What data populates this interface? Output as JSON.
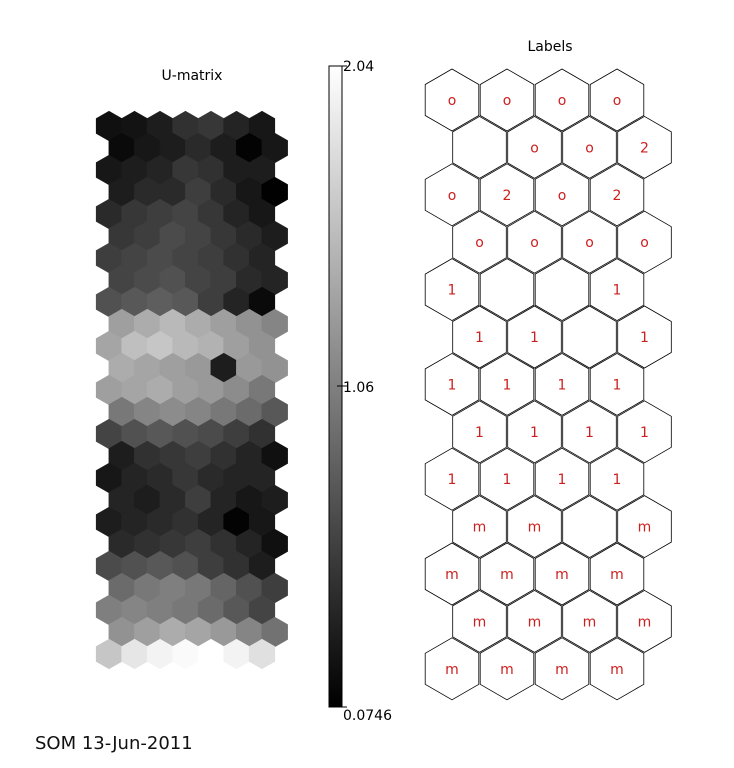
{
  "footer": "SOM 13-Jun-2011",
  "chart_data": [
    {
      "type": "heatmap",
      "title": "U-matrix",
      "grid": "hexagonal",
      "rows": 25,
      "cols": 7,
      "colormap": "gray",
      "colorbar": {
        "min": 0.0746,
        "max": 2.04,
        "ticks": [
          "2.04",
          "1.06",
          "0.0746"
        ]
      },
      "values": [
        [
          0.2,
          0.22,
          0.3,
          0.45,
          0.5,
          0.35,
          0.25
        ],
        [
          0.15,
          0.25,
          0.3,
          0.4,
          0.3,
          0.1,
          0.25
        ],
        [
          0.25,
          0.3,
          0.35,
          0.5,
          0.45,
          0.3,
          0.3
        ],
        [
          0.3,
          0.4,
          0.4,
          0.55,
          0.4,
          0.25,
          0.08
        ],
        [
          0.4,
          0.5,
          0.55,
          0.6,
          0.5,
          0.35,
          0.25
        ],
        [
          0.5,
          0.55,
          0.65,
          0.6,
          0.5,
          0.4,
          0.3
        ],
        [
          0.55,
          0.6,
          0.65,
          0.6,
          0.55,
          0.45,
          0.35
        ],
        [
          0.6,
          0.65,
          0.7,
          0.6,
          0.55,
          0.4,
          0.35
        ],
        [
          0.7,
          0.75,
          0.8,
          0.75,
          0.55,
          0.35,
          0.15
        ],
        [
          1.3,
          1.4,
          1.5,
          1.4,
          1.3,
          1.2,
          1.1
        ],
        [
          1.35,
          1.55,
          1.6,
          1.5,
          1.45,
          1.3,
          1.2
        ],
        [
          1.4,
          1.35,
          1.3,
          1.25,
          0.3,
          1.25,
          1.2
        ],
        [
          1.3,
          1.35,
          1.4,
          1.3,
          1.25,
          1.15,
          1.0
        ],
        [
          1.0,
          1.1,
          1.15,
          1.1,
          1.0,
          0.9,
          0.75
        ],
        [
          0.6,
          0.7,
          0.75,
          0.7,
          0.65,
          0.55,
          0.45
        ],
        [
          0.3,
          0.45,
          0.5,
          0.55,
          0.45,
          0.35,
          0.2
        ],
        [
          0.25,
          0.35,
          0.4,
          0.5,
          0.4,
          0.35,
          0.35
        ],
        [
          0.35,
          0.3,
          0.4,
          0.55,
          0.35,
          0.25,
          0.3
        ],
        [
          0.3,
          0.35,
          0.4,
          0.45,
          0.35,
          0.1,
          0.25
        ],
        [
          0.4,
          0.45,
          0.5,
          0.55,
          0.45,
          0.35,
          0.2
        ],
        [
          0.65,
          0.7,
          0.75,
          0.7,
          0.55,
          0.45,
          0.3
        ],
        [
          0.9,
          1.0,
          1.05,
          1.0,
          0.85,
          0.7,
          0.55
        ],
        [
          1.05,
          1.1,
          1.05,
          1.0,
          0.9,
          0.75,
          0.6
        ],
        [
          1.2,
          1.3,
          1.4,
          1.35,
          1.25,
          1.1,
          0.95
        ],
        [
          1.6,
          1.85,
          1.95,
          2.0,
          2.04,
          1.95,
          1.8
        ]
      ]
    },
    {
      "type": "table",
      "title": "Labels",
      "grid": "hexagonal",
      "rows": 13,
      "cols": 4,
      "label_color": "#cc1f1f",
      "cells": [
        [
          "o",
          "o",
          "o",
          "o"
        ],
        [
          "",
          "o",
          "o",
          "2"
        ],
        [
          "o",
          "2",
          "o",
          "2"
        ],
        [
          "o",
          "o",
          "o",
          "o"
        ],
        [
          "1",
          "",
          "",
          "1"
        ],
        [
          "1",
          "1",
          "",
          "1"
        ],
        [
          "1",
          "1",
          "1",
          "1"
        ],
        [
          "1",
          "1",
          "1",
          "1"
        ],
        [
          "1",
          "1",
          "1",
          "1"
        ],
        [
          "m",
          "m",
          "",
          "m"
        ],
        [
          "m",
          "m",
          "m",
          "m"
        ],
        [
          "m",
          "m",
          "m",
          "m"
        ],
        [
          "m",
          "m",
          "m",
          "m"
        ]
      ]
    }
  ]
}
